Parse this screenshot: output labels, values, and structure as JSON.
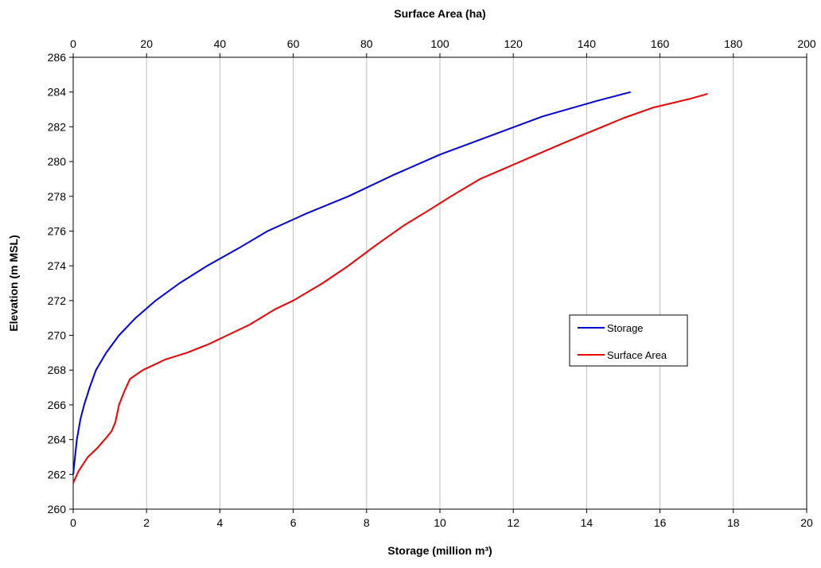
{
  "chart_data": {
    "type": "line",
    "top_axis_title": "Surface Area (ha)",
    "bottom_axis_title": "Storage (million m³)",
    "y_axis_title": "Elevation (m MSL)",
    "y_range": [
      260,
      286
    ],
    "y_ticks": [
      260,
      262,
      264,
      266,
      268,
      270,
      272,
      274,
      276,
      278,
      280,
      282,
      284,
      286
    ],
    "bottom_range": [
      0,
      20
    ],
    "bottom_ticks": [
      0,
      2,
      4,
      6,
      8,
      10,
      12,
      14,
      16,
      18,
      20
    ],
    "top_range": [
      0,
      200
    ],
    "top_ticks": [
      0,
      20,
      40,
      60,
      80,
      100,
      120,
      140,
      160,
      180,
      200
    ],
    "grid": "vertical",
    "legend_position": "right",
    "series": [
      {
        "name": "Storage",
        "axis": "bottom",
        "color": "#0000dd",
        "points": [
          [
            0.0,
            262.0
          ],
          [
            0.1,
            264.0
          ],
          [
            0.2,
            265.2
          ],
          [
            0.3,
            266.0
          ],
          [
            0.45,
            267.0
          ],
          [
            0.62,
            268.0
          ],
          [
            0.9,
            269.0
          ],
          [
            1.25,
            270.0
          ],
          [
            1.7,
            271.0
          ],
          [
            2.25,
            272.0
          ],
          [
            2.9,
            273.0
          ],
          [
            3.65,
            274.0
          ],
          [
            4.5,
            275.0
          ],
          [
            5.3,
            276.0
          ],
          [
            6.35,
            277.0
          ],
          [
            7.5,
            278.0
          ],
          [
            8.7,
            279.2
          ],
          [
            10.0,
            280.4
          ],
          [
            11.4,
            281.5
          ],
          [
            12.8,
            282.6
          ],
          [
            14.3,
            283.5
          ],
          [
            15.2,
            284.0
          ]
        ]
      },
      {
        "name": "Surface Area",
        "axis": "top",
        "color": "#ee0000",
        "points": [
          [
            0.0,
            261.5
          ],
          [
            1.5,
            262.2
          ],
          [
            4.0,
            263.0
          ],
          [
            6.5,
            263.5
          ],
          [
            9.0,
            264.1
          ],
          [
            10.5,
            264.5
          ],
          [
            11.5,
            265.0
          ],
          [
            12.5,
            266.0
          ],
          [
            14.0,
            266.8
          ],
          [
            15.5,
            267.5
          ],
          [
            19.0,
            268.0
          ],
          [
            25.0,
            268.6
          ],
          [
            31.0,
            269.0
          ],
          [
            37.0,
            269.5
          ],
          [
            42.0,
            270.0
          ],
          [
            48.0,
            270.6
          ],
          [
            55.0,
            271.5
          ],
          [
            60.0,
            272.0
          ],
          [
            68.0,
            273.0
          ],
          [
            75.0,
            274.0
          ],
          [
            82.0,
            275.1
          ],
          [
            90.0,
            276.3
          ],
          [
            97.0,
            277.2
          ],
          [
            103.0,
            278.0
          ],
          [
            111.0,
            279.0
          ],
          [
            122.0,
            280.0
          ],
          [
            133.0,
            281.0
          ],
          [
            142.0,
            281.8
          ],
          [
            150.0,
            282.5
          ],
          [
            158.0,
            283.1
          ],
          [
            168.0,
            283.6
          ],
          [
            173.0,
            283.9
          ]
        ]
      }
    ]
  }
}
